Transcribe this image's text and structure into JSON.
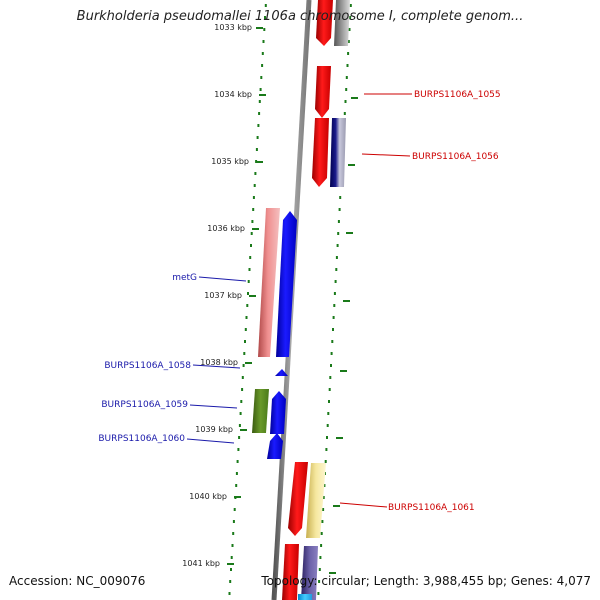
{
  "title": "Burkholderia pseudomallei 1106a chromosome I, complete genom...",
  "footer": {
    "accession": "Accession: NC_009076",
    "topology": "Topology: circular; Length: 3,988,455 bp; Genes: 4,077"
  },
  "ruler": {
    "ticks": [
      "1033 kbp",
      "1034 kbp",
      "1035 kbp",
      "1036 kbp",
      "1037 kbp",
      "1038 kbp",
      "1039 kbp",
      "1040 kbp",
      "1041 kbp"
    ]
  },
  "gene_labels": [
    {
      "name": "BURPS1106A_1055",
      "color": "#cc0000"
    },
    {
      "name": "BURPS1106A_1056",
      "color": "#cc0000"
    },
    {
      "name": "metG",
      "color": "#1a1aaa"
    },
    {
      "name": "BURPS1106A_1058",
      "color": "#1a1aaa"
    },
    {
      "name": "BURPS1106A_1059",
      "color": "#1a1aaa"
    },
    {
      "name": "BURPS1106A_1060",
      "color": "#1a1aaa"
    },
    {
      "name": "BURPS1106A_1061",
      "color": "#cc0000"
    }
  ],
  "colors": {
    "forward_strand_label": "#cc0000",
    "reverse_strand_label": "#1a1aaa",
    "backbone": "#888888",
    "tick": "#1a7a1a",
    "gene_red": "#ee0000",
    "gene_blue": "#0000ee",
    "gene_pink": "#e88080",
    "gene_olive": "#5a8a1a",
    "gene_yellow": "#f0e08a",
    "gene_navy": "#1a1a7a",
    "gene_gray": "#777777",
    "gene_slate": "#4a3f8a",
    "gene_cyan": "#22b8ee"
  }
}
